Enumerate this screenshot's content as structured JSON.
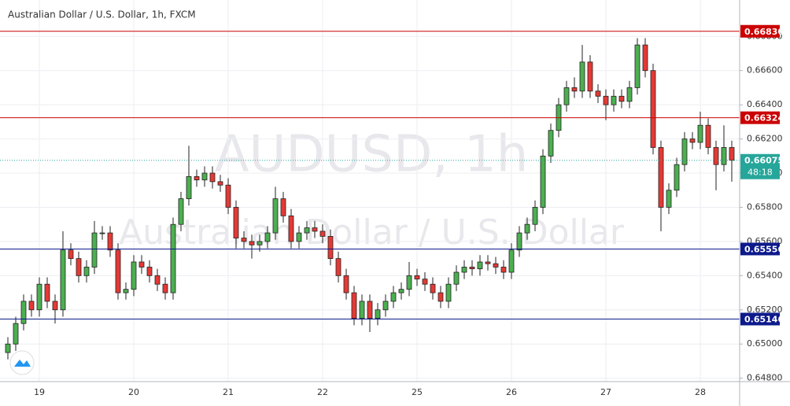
{
  "chart_data": {
    "type": "candlestick",
    "title": "Australian Dollar / U.S. Dollar, 1h, FXCM",
    "watermark": "AUDUSD, 1h",
    "watermark_subtitle": "Australian Dollar / U.S. Dollar",
    "categories": [
      null,
      null,
      null,
      null,
      "19",
      null,
      null,
      null,
      null,
      null,
      null,
      null,
      null,
      null,
      null,
      null,
      "20",
      null,
      null,
      null,
      null,
      null,
      null,
      null,
      null,
      null,
      null,
      null,
      "21",
      null,
      null,
      null,
      null,
      null,
      null,
      null,
      null,
      null,
      null,
      null,
      "22",
      null,
      null,
      null,
      null,
      null,
      null,
      null,
      null,
      null,
      null,
      null,
      "25",
      null,
      null,
      null,
      null,
      null,
      null,
      null,
      null,
      null,
      null,
      null,
      "26",
      null,
      null,
      null,
      null,
      null,
      null,
      null,
      null,
      null,
      null,
      null,
      "27",
      null,
      null,
      null,
      null,
      null,
      null,
      null,
      null,
      null,
      null,
      null,
      "28",
      null,
      null,
      null,
      null
    ],
    "open": [
      0.6495,
      0.65,
      0.6512,
      0.6525,
      0.652,
      0.6535,
      0.6525,
      0.652,
      0.6555,
      0.655,
      0.654,
      0.6545,
      0.6565,
      0.6565,
      0.6555,
      0.653,
      0.6532,
      0.6548,
      0.6545,
      0.654,
      0.6535,
      0.653,
      0.657,
      0.6585,
      0.6598,
      0.6596,
      0.66,
      0.6595,
      0.6593,
      0.658,
      0.6562,
      0.656,
      0.6558,
      0.656,
      0.6565,
      0.6585,
      0.6575,
      0.656,
      0.6565,
      0.6568,
      0.6566,
      0.6563,
      0.655,
      0.654,
      0.653,
      0.6515,
      0.6525,
      0.6515,
      0.652,
      0.6525,
      0.653,
      0.6532,
      0.654,
      0.6538,
      0.6535,
      0.653,
      0.6525,
      0.6535,
      0.6542,
      0.6545,
      0.6544,
      0.6548,
      0.6547,
      0.6545,
      0.6542,
      0.6555,
      0.6565,
      0.657,
      0.658,
      0.661,
      0.6625,
      0.664,
      0.665,
      0.6648,
      0.6665,
      0.6648,
      0.6645,
      0.664,
      0.6645,
      0.6642,
      0.665,
      0.6675,
      0.666,
      0.6615,
      0.658,
      0.659,
      0.6605,
      0.662,
      0.6618,
      0.6628,
      0.6615,
      0.6605,
      0.6615
    ],
    "high": [
      0.6504,
      0.6516,
      0.6529,
      0.6529,
      0.6539,
      0.6539,
      0.6529,
      0.6566,
      0.6559,
      0.6554,
      0.6549,
      0.6572,
      0.6569,
      0.6569,
      0.6559,
      0.6536,
      0.6552,
      0.6552,
      0.6549,
      0.6544,
      0.6539,
      0.6574,
      0.6589,
      0.6616,
      0.6602,
      0.6604,
      0.6604,
      0.6599,
      0.6597,
      0.6584,
      0.6566,
      0.6564,
      0.6564,
      0.6569,
      0.6592,
      0.6589,
      0.6579,
      0.6569,
      0.6572,
      0.6572,
      0.657,
      0.6567,
      0.6554,
      0.6544,
      0.6534,
      0.6529,
      0.6529,
      0.6524,
      0.6529,
      0.6534,
      0.6536,
      0.6548,
      0.6544,
      0.6542,
      0.6539,
      0.6534,
      0.6539,
      0.6546,
      0.6549,
      0.6549,
      0.6552,
      0.6552,
      0.6551,
      0.6549,
      0.6559,
      0.6569,
      0.6574,
      0.6584,
      0.6614,
      0.6629,
      0.6644,
      0.6654,
      0.6656,
      0.6675,
      0.6669,
      0.6652,
      0.6649,
      0.6649,
      0.6649,
      0.6654,
      0.6679,
      0.6679,
      0.6664,
      0.6619,
      0.6594,
      0.6609,
      0.6624,
      0.6624,
      0.6636,
      0.6632,
      0.6619,
      0.6628,
      0.6619
    ],
    "low": [
      0.6491,
      0.6496,
      0.6508,
      0.6516,
      0.6516,
      0.6521,
      0.6512,
      0.6516,
      0.6546,
      0.6536,
      0.6536,
      0.6541,
      0.6561,
      0.6551,
      0.6526,
      0.6526,
      0.6528,
      0.6541,
      0.6536,
      0.6531,
      0.6526,
      0.6526,
      0.6566,
      0.6581,
      0.6592,
      0.6592,
      0.6591,
      0.6589,
      0.6576,
      0.6556,
      0.6556,
      0.655,
      0.6554,
      0.6556,
      0.6561,
      0.6571,
      0.6556,
      0.6556,
      0.6561,
      0.6562,
      0.6559,
      0.6546,
      0.6536,
      0.6526,
      0.6511,
      0.6511,
      0.6507,
      0.6511,
      0.6516,
      0.6521,
      0.6526,
      0.6528,
      0.6534,
      0.6531,
      0.6526,
      0.6521,
      0.6521,
      0.6531,
      0.6538,
      0.654,
      0.654,
      0.6543,
      0.6541,
      0.6538,
      0.6538,
      0.6551,
      0.6561,
      0.6566,
      0.6576,
      0.6606,
      0.6621,
      0.6636,
      0.6644,
      0.6644,
      0.6644,
      0.6641,
      0.6631,
      0.6636,
      0.6638,
      0.6638,
      0.6646,
      0.6656,
      0.6611,
      0.6566,
      0.6576,
      0.6586,
      0.6601,
      0.6614,
      0.6614,
      0.6611,
      0.659,
      0.6601,
      0.6595
    ],
    "close": [
      0.65,
      0.6512,
      0.6525,
      0.652,
      0.6535,
      0.6525,
      0.652,
      0.6555,
      0.655,
      0.654,
      0.6545,
      0.6565,
      0.6565,
      0.6555,
      0.653,
      0.6532,
      0.6548,
      0.6545,
      0.654,
      0.6535,
      0.653,
      0.657,
      0.6585,
      0.6598,
      0.6596,
      0.66,
      0.6595,
      0.6593,
      0.658,
      0.6562,
      0.656,
      0.6558,
      0.656,
      0.6565,
      0.6585,
      0.6575,
      0.656,
      0.6565,
      0.6568,
      0.6566,
      0.6563,
      0.655,
      0.654,
      0.653,
      0.6515,
      0.6525,
      0.6515,
      0.652,
      0.6525,
      0.653,
      0.6532,
      0.654,
      0.6538,
      0.6535,
      0.653,
      0.6525,
      0.6535,
      0.6542,
      0.6545,
      0.6544,
      0.6548,
      0.6547,
      0.6545,
      0.6542,
      0.6555,
      0.6565,
      0.657,
      0.658,
      0.661,
      0.6625,
      0.664,
      0.665,
      0.6648,
      0.6665,
      0.6648,
      0.6645,
      0.664,
      0.6645,
      0.6642,
      0.665,
      0.6675,
      0.666,
      0.6615,
      0.658,
      0.659,
      0.6605,
      0.662,
      0.6618,
      0.6628,
      0.6615,
      0.6605,
      0.6615,
      0.66075
    ],
    "up_color": "#4caf50",
    "down_color": "#e53935",
    "ylim": [
      0.6478,
      0.6699
    ],
    "yticks": [
      {
        "value": 0.648,
        "label": "0.64800"
      },
      {
        "value": 0.65,
        "label": "0.65000"
      },
      {
        "value": 0.652,
        "label": "0.65200"
      },
      {
        "value": 0.654,
        "label": "0.65400"
      },
      {
        "value": 0.656,
        "label": "0.65600"
      },
      {
        "value": 0.658,
        "label": "0.65800"
      },
      {
        "value": 0.66,
        "label": "0.66000"
      },
      {
        "value": 0.662,
        "label": "0.66200"
      },
      {
        "value": 0.664,
        "label": "0.66400"
      },
      {
        "value": 0.666,
        "label": "0.66600"
      },
      {
        "value": 0.668,
        "label": "0.66800"
      }
    ],
    "grid": true,
    "levels": [
      {
        "value": 0.6683,
        "label": "0.66830",
        "color": "#cc0000"
      },
      {
        "value": 0.66324,
        "label": "0.66324",
        "color": "#cc0000"
      },
      {
        "value": 0.65556,
        "label": "0.65556",
        "color": "#0d1a8c"
      },
      {
        "value": 0.65146,
        "label": "0.65146",
        "color": "#0d1a8c"
      }
    ],
    "last_price": {
      "value": 0.66075,
      "label": "0.66075",
      "color": "#26a69a",
      "countdown": "48:18"
    }
  }
}
